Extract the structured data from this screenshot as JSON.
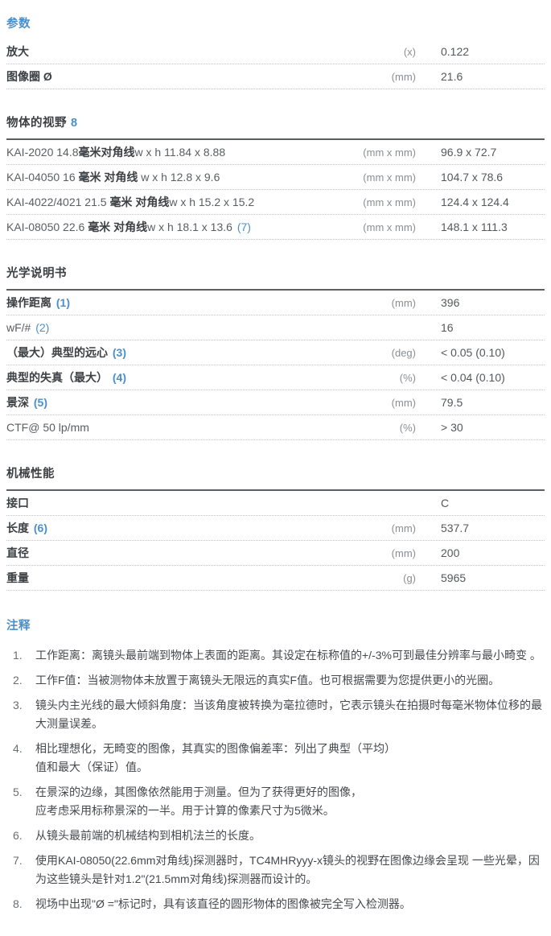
{
  "colors": {
    "accent_blue": "#4a8fca"
  },
  "params": {
    "title": "参数",
    "rows": [
      {
        "label": "放大",
        "unit": "(x)",
        "value": "0.122"
      },
      {
        "label": "图像圈 Ø",
        "unit": "(mm)",
        "value": "21.6"
      }
    ]
  },
  "fov": {
    "title": "物体的视野",
    "ref": "8",
    "rows": [
      {
        "pre": "KAI-2020 14.8",
        "bold": "毫米对角线",
        "post": "w x h 11.84 x 8.88",
        "ref": "",
        "unit": "(mm x mm)",
        "value": "96.9 x 72.7"
      },
      {
        "pre": "KAI-04050 16 ",
        "bold": "毫米 对角线",
        "post": " w x h 12.8 x 9.6",
        "ref": "",
        "unit": "(mm x mm)",
        "value": "104.7 x 78.6"
      },
      {
        "pre": "KAI-4022/4021 21.5 ",
        "bold": "毫米 对角线",
        "post": "w x h 15.2 x 15.2",
        "ref": "",
        "unit": "(mm x mm)",
        "value": "124.4 x 124.4"
      },
      {
        "pre": "KAI-08050 22.6 ",
        "bold": "毫米 对角线",
        "post": "w x h 18.1 x 13.6 ",
        "ref": "(7)",
        "unit": "(mm x mm)",
        "value": "148.1 x 111.3"
      }
    ]
  },
  "optical": {
    "title": "光学说明书",
    "rows": [
      {
        "label": "操作距离 ",
        "ref": "(1)",
        "unit": "(mm)",
        "value": "396"
      },
      {
        "label": "wF/# ",
        "ref": "(2)",
        "unit": "",
        "value": "16"
      },
      {
        "label": "（最大）典型的远心 ",
        "ref": "(3)",
        "unit": "(deg)",
        "value": "< 0.05 (0.10)"
      },
      {
        "label": "典型的失真（最大） ",
        "ref": "(4)",
        "unit": "(%)",
        "value": "< 0.04 (0.10)"
      },
      {
        "label": "景深 ",
        "ref": "(5)",
        "unit": "(mm)",
        "value": "79.5"
      },
      {
        "label": "CTF@ 50 lp/mm",
        "ref": "",
        "unit": "(%)",
        "value": "> 30"
      }
    ]
  },
  "mechanical": {
    "title": "机械性能",
    "rows": [
      {
        "label": "接口",
        "ref": "",
        "unit": "",
        "value": "C"
      },
      {
        "label": "长度 ",
        "ref": "(6)",
        "unit": "(mm)",
        "value": "537.7"
      },
      {
        "label": "直径",
        "ref": "",
        "unit": "(mm)",
        "value": "200"
      },
      {
        "label": "重量",
        "ref": "",
        "unit": "(g)",
        "value": "5965"
      }
    ]
  },
  "notes": {
    "title": "注释",
    "items": [
      {
        "num": "1.",
        "text": "工作距离：离镜头最前端到物体上表面的距离。其设定在标称值的+/-3%可到最佳分辨率与最小畸变 。"
      },
      {
        "num": "2.",
        "text": "工作F值：当被测物体未放置于离镜头无限远的真实F值。也可根据需要为您提供更小的光圈。"
      },
      {
        "num": "3.",
        "text": "镜头内主光线的最大倾斜角度：当该角度被转换为毫拉德时，它表示镜头在拍摄时每毫米物体位移的最大测量误差。"
      },
      {
        "num": "4.",
        "text": "相比理想化，无畸变的图像，其真实的图像偏差率：列出了典型（平均）\n值和最大（保证）值。"
      },
      {
        "num": "5.",
        "text": "在景深的边缘，其图像依然能用于测量。但为了获得更好的图像，\n应考虑采用标称景深的一半。用于计算的像素尺寸为5微米。"
      },
      {
        "num": "6.",
        "text": "从镜头最前端的机械结构到相机法兰的长度。"
      },
      {
        "num": "7.",
        "text": "使用KAI-08050(22.6mm对角线)探测器时，TC4MHRyyy-x镜头的视野在图像边缘会呈现 一些光晕，因为这些镜头是针对1.2\"(21.5mm对角线)探测器而设计的。"
      },
      {
        "num": "8.",
        "text": "视场中出现\"Ø =\"标记时，具有该直径的圆形物体的图像被完全写入检测器。"
      }
    ]
  }
}
